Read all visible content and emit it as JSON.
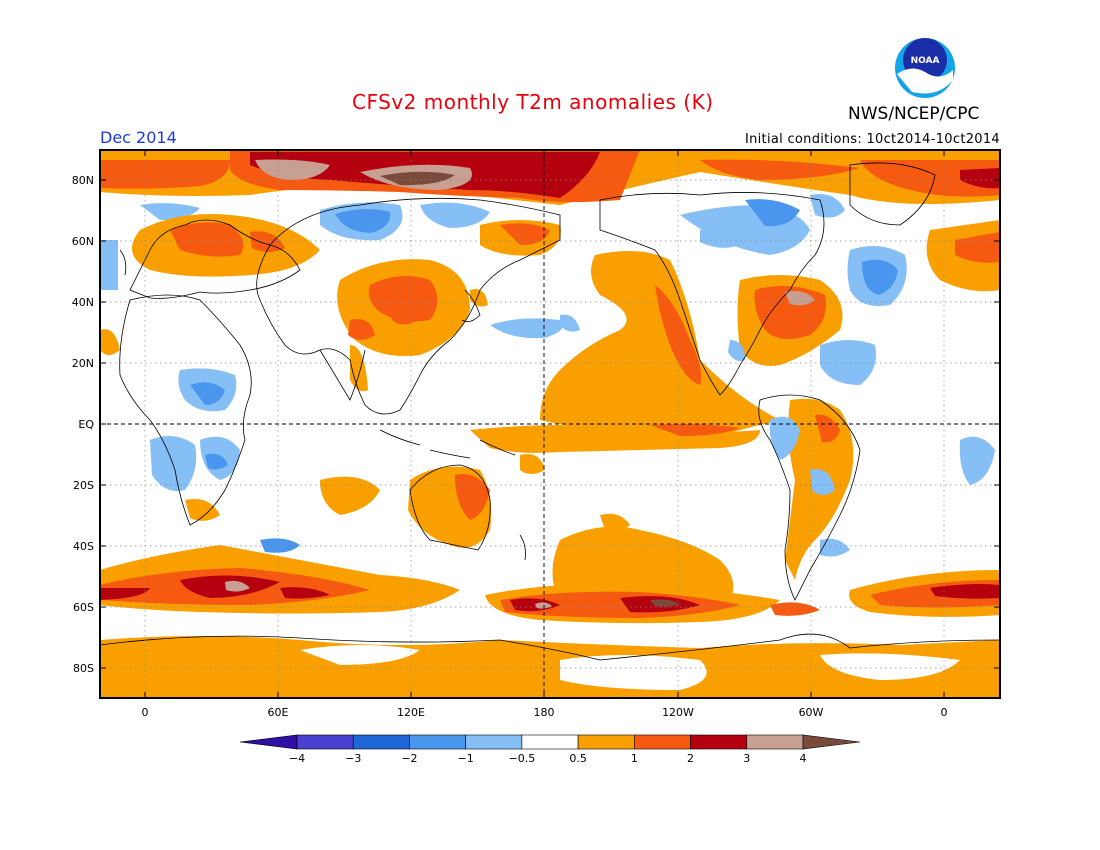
{
  "title": "CFSv2 monthly T2m anomalies (K)",
  "agency": "NWS/NCEP/CPC",
  "logo_text": "NOAA",
  "valid_month": "Dec 2014",
  "initial_conditions": "Initial conditions: 10ct2014-10ct2014",
  "lat_labels": [
    "80N",
    "60N",
    "40N",
    "20N",
    "EQ",
    "20S",
    "40S",
    "60S",
    "80S"
  ],
  "lon_labels": [
    "0",
    "60E",
    "120E",
    "180",
    "120W",
    "60W",
    "0"
  ],
  "colorbar": {
    "labels": [
      "−4",
      "−3",
      "−2",
      "−1",
      "−0.5",
      "0.5",
      "1",
      "2",
      "3",
      "4"
    ],
    "colors": [
      "#2f0fa8",
      "#4a3fd0",
      "#1f66d6",
      "#4a95ee",
      "#85bff5",
      "#ffffff",
      "#f9a000",
      "#f55a10",
      "#b5000f",
      "#c8a091",
      "#7a4a3a"
    ]
  },
  "anomaly_colors": {
    "cold_0_5": "#85bff5",
    "cold_1": "#4a95ee",
    "warm_0_5": "#f9a000",
    "warm_1": "#f55a10",
    "warm_2": "#b5000f",
    "warm_3": "#c8a091",
    "warm_4": "#7a4a3a"
  }
}
